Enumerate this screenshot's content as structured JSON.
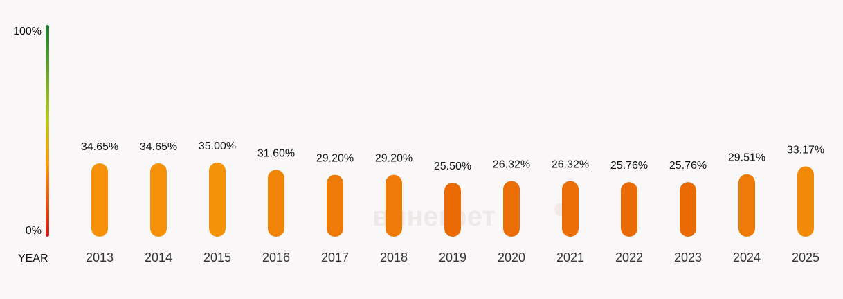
{
  "chart_data": {
    "type": "bar",
    "title": "",
    "xlabel": "YEAR",
    "ylabel": "",
    "ylim": [
      0,
      100
    ],
    "y_tick_labels": [
      "0%",
      "100%"
    ],
    "categories": [
      "2013",
      "2014",
      "2015",
      "2016",
      "2017",
      "2018",
      "2019",
      "2020",
      "2021",
      "2022",
      "2023",
      "2024",
      "2025"
    ],
    "values": [
      34.65,
      34.65,
      35.0,
      31.6,
      29.2,
      29.2,
      25.5,
      26.32,
      26.32,
      25.76,
      25.76,
      29.51,
      33.17
    ],
    "value_labels": [
      "34.65%",
      "34.65%",
      "35.00%",
      "31.60%",
      "29.20%",
      "29.20%",
      "25.50%",
      "26.32%",
      "26.32%",
      "25.76%",
      "25.76%",
      "29.51%",
      "33.17%"
    ],
    "grid": false,
    "colors": {
      "gradient_bottom": "#cc1b1b",
      "gradient_low": "#f39c12",
      "gradient_mid": "#b8c928",
      "gradient_top": "#1e7a35"
    },
    "watermark": "винегрет"
  }
}
